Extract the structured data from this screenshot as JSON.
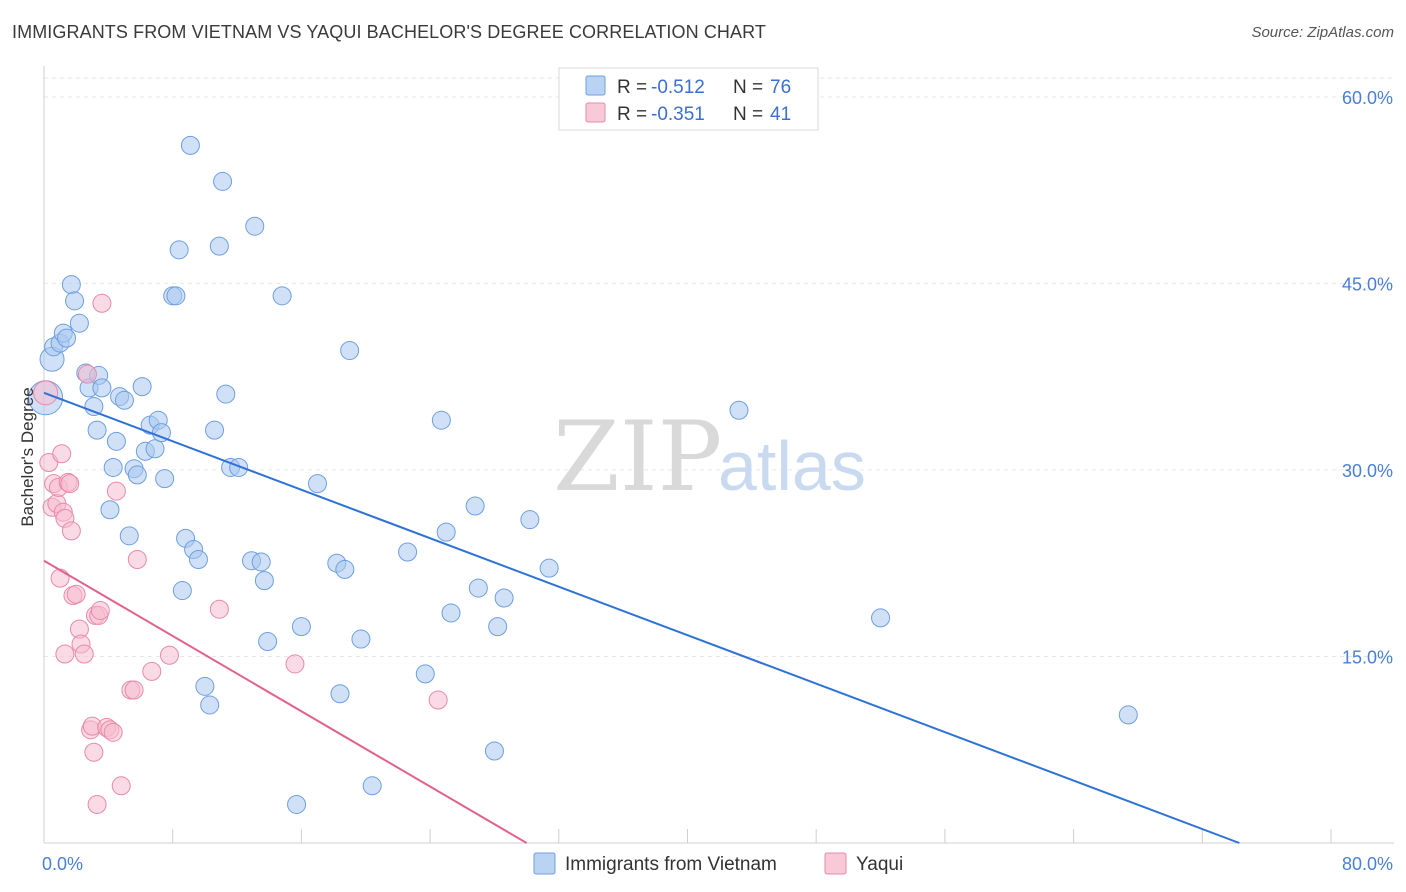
{
  "title": "IMMIGRANTS FROM VIETNAM VS YAQUI BACHELOR'S DEGREE CORRELATION CHART",
  "source": "Source: ZipAtlas.com",
  "watermark": {
    "zip": "ZIP",
    "atlas": "atlas"
  },
  "colors": {
    "blue_fill": "#a9c8f0",
    "blue_stroke": "#6d9fe0",
    "blue_line": "#2f72d6",
    "pink_fill": "#f6bccd",
    "pink_stroke": "#e88aa8",
    "pink_line": "#e0628d",
    "grid": "#e6e6e6",
    "tick_text": "#4a7fd6"
  },
  "legend": {
    "rows": [
      {
        "r_label": "R = ",
        "r_value": "-0.512",
        "n_label": "N = ",
        "n_value": "76"
      },
      {
        "r_label": "R = ",
        "r_value": "-0.351",
        "n_label": "N = ",
        "n_value": "41"
      }
    ]
  },
  "chart_data": {
    "type": "scatter",
    "title": "IMMIGRANTS FROM VIETNAM VS YAQUI BACHELOR'S DEGREE CORRELATION CHART",
    "xlabel": "",
    "ylabel": "Bachelor's Degree",
    "xlim": [
      0,
      80
    ],
    "ylim": [
      0,
      62
    ],
    "x_tick_labels": [
      "0.0%",
      "80.0%"
    ],
    "y_ticks": [
      15,
      30,
      45,
      60
    ],
    "y_tick_labels": [
      "15.0%",
      "30.0%",
      "45.0%",
      "60.0%"
    ],
    "grid": true,
    "legend_position": "top-center",
    "series": [
      {
        "name": "Immigrants from Vietnam",
        "r": -0.512,
        "n": 76,
        "trend": {
          "x": [
            0,
            74.3
          ],
          "y": [
            36.2,
            0
          ]
        },
        "points": [
          [
            0.1,
            35.8
          ],
          [
            0.5,
            38.9
          ],
          [
            0.6,
            39.9
          ],
          [
            1.0,
            40.2
          ],
          [
            1.2,
            41.0
          ],
          [
            1.4,
            40.6
          ],
          [
            1.7,
            44.9
          ],
          [
            1.9,
            43.6
          ],
          [
            2.2,
            41.8
          ],
          [
            2.6,
            37.8
          ],
          [
            2.8,
            36.6
          ],
          [
            3.1,
            35.1
          ],
          [
            3.3,
            33.2
          ],
          [
            3.4,
            37.6
          ],
          [
            3.6,
            36.6
          ],
          [
            4.1,
            26.8
          ],
          [
            4.3,
            30.2
          ],
          [
            4.5,
            32.3
          ],
          [
            4.7,
            35.9
          ],
          [
            5.0,
            35.6
          ],
          [
            5.3,
            24.7
          ],
          [
            5.6,
            30.1
          ],
          [
            5.8,
            29.6
          ],
          [
            6.1,
            36.7
          ],
          [
            6.3,
            31.5
          ],
          [
            6.6,
            33.6
          ],
          [
            6.9,
            31.7
          ],
          [
            7.1,
            34.0
          ],
          [
            7.3,
            33.0
          ],
          [
            7.5,
            29.3
          ],
          [
            8.0,
            44.0
          ],
          [
            8.2,
            44.0
          ],
          [
            8.4,
            47.7
          ],
          [
            8.6,
            20.3
          ],
          [
            8.8,
            24.5
          ],
          [
            9.1,
            56.1
          ],
          [
            9.3,
            23.6
          ],
          [
            9.6,
            22.8
          ],
          [
            10.0,
            12.6
          ],
          [
            10.3,
            11.1
          ],
          [
            10.6,
            33.2
          ],
          [
            10.9,
            48.0
          ],
          [
            11.1,
            53.2
          ],
          [
            11.3,
            36.1
          ],
          [
            11.6,
            30.2
          ],
          [
            12.1,
            30.2
          ],
          [
            12.9,
            22.7
          ],
          [
            13.1,
            49.6
          ],
          [
            13.5,
            22.6
          ],
          [
            13.7,
            21.1
          ],
          [
            13.9,
            16.2
          ],
          [
            14.8,
            44.0
          ],
          [
            15.7,
            3.1
          ],
          [
            16.0,
            17.4
          ],
          [
            17.0,
            28.9
          ],
          [
            18.2,
            22.5
          ],
          [
            18.4,
            12.0
          ],
          [
            18.7,
            22.0
          ],
          [
            19.0,
            39.6
          ],
          [
            19.7,
            16.4
          ],
          [
            20.4,
            4.6
          ],
          [
            22.6,
            23.4
          ],
          [
            23.7,
            13.6
          ],
          [
            24.7,
            34.0
          ],
          [
            25.0,
            25.0
          ],
          [
            25.3,
            18.5
          ],
          [
            26.8,
            27.1
          ],
          [
            27.0,
            20.5
          ],
          [
            28.0,
            7.4
          ],
          [
            28.2,
            17.4
          ],
          [
            28.6,
            19.7
          ],
          [
            30.2,
            26.0
          ],
          [
            31.4,
            22.1
          ],
          [
            43.2,
            34.8
          ],
          [
            52.0,
            18.1
          ],
          [
            67.4,
            10.3
          ]
        ]
      },
      {
        "name": "Yaqui",
        "r": -0.351,
        "n": 41,
        "trend": {
          "x": [
            0,
            30.0
          ],
          "y": [
            22.7,
            0
          ]
        },
        "points": [
          [
            0.1,
            36.2
          ],
          [
            0.3,
            30.6
          ],
          [
            0.5,
            27.0
          ],
          [
            0.6,
            28.9
          ],
          [
            0.8,
            27.3
          ],
          [
            0.9,
            28.6
          ],
          [
            1.0,
            21.3
          ],
          [
            1.1,
            31.3
          ],
          [
            1.2,
            26.6
          ],
          [
            1.3,
            26.1
          ],
          [
            1.5,
            29.0
          ],
          [
            1.6,
            28.9
          ],
          [
            1.7,
            25.1
          ],
          [
            1.8,
            19.9
          ],
          [
            2.0,
            20.0
          ],
          [
            2.2,
            17.2
          ],
          [
            2.3,
            16.0
          ],
          [
            2.5,
            15.2
          ],
          [
            2.7,
            37.7
          ],
          [
            2.9,
            9.1
          ],
          [
            3.0,
            9.4
          ],
          [
            3.1,
            7.3
          ],
          [
            3.2,
            18.3
          ],
          [
            3.3,
            3.1
          ],
          [
            3.4,
            18.3
          ],
          [
            3.5,
            18.7
          ],
          [
            3.6,
            43.4
          ],
          [
            3.9,
            9.3
          ],
          [
            4.1,
            9.1
          ],
          [
            4.3,
            8.9
          ],
          [
            4.5,
            28.3
          ],
          [
            4.8,
            4.6
          ],
          [
            5.4,
            12.3
          ],
          [
            5.6,
            12.3
          ],
          [
            5.8,
            22.8
          ],
          [
            6.7,
            13.8
          ],
          [
            7.8,
            15.1
          ],
          [
            10.9,
            18.8
          ],
          [
            15.6,
            14.4
          ],
          [
            24.5,
            11.5
          ],
          [
            1.3,
            15.2
          ]
        ]
      }
    ]
  }
}
